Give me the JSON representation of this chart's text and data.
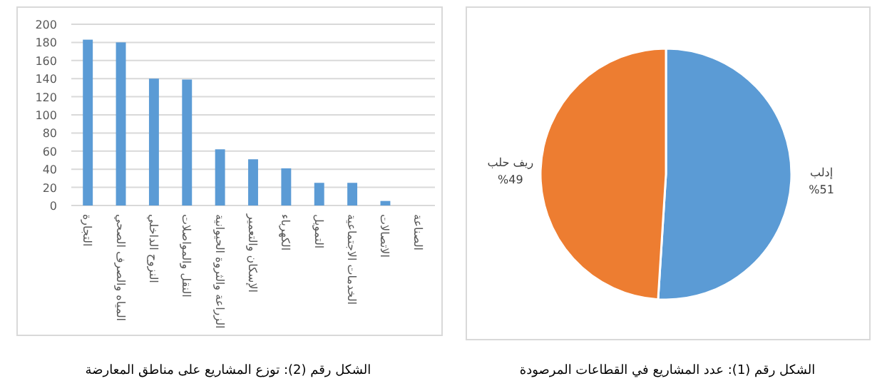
{
  "chart_data": [
    {
      "type": "pie",
      "categories": [
        "إدلب",
        "ريف حلب"
      ],
      "values": [
        51,
        49
      ],
      "value_labels": [
        "%51",
        "%49"
      ],
      "colors": [
        "#5b9bd5",
        "#ed7d31"
      ],
      "annotations": [
        "الشكل رقم (1): عدد المشاريع في القطاعات المرصودة"
      ]
    },
    {
      "type": "bar",
      "categories": [
        "التجارة",
        "المياه والصرف الصحي",
        "النزوح الداخلي",
        "النقل والمواصلات",
        "الزراعة والثروة الحيوانية",
        "الإسكان والتعمير",
        "الكهرباء",
        "التمويل",
        "الخدمات الاجتماعية",
        "الاتصالات",
        "الصناعة"
      ],
      "values": [
        183,
        180,
        140,
        139,
        62,
        51,
        41,
        25,
        25,
        5,
        0
      ],
      "color": "#5b9bd5",
      "ylim": [
        0,
        200
      ],
      "yticks": [
        0,
        20,
        40,
        60,
        80,
        100,
        120,
        140,
        160,
        180,
        200
      ],
      "grid": "y",
      "annotations": [
        "الشكل رقم (2): توزع المشاريع على مناطق المعارضة"
      ]
    }
  ]
}
